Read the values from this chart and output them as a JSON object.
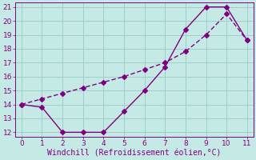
{
  "xlabel": "Windchill (Refroidissement éolien,°C)",
  "line1_x": [
    0,
    1,
    2,
    3,
    4,
    5,
    6,
    7,
    8,
    9,
    10,
    11
  ],
  "line1_y": [
    14,
    13.8,
    12,
    12,
    12,
    13.5,
    15,
    16.7,
    19.4,
    21,
    21,
    18.6
  ],
  "line2_x": [
    0,
    1,
    2,
    3,
    4,
    5,
    6,
    7,
    8,
    9,
    10,
    11
  ],
  "line2_y": [
    14,
    14.4,
    14.8,
    15.2,
    15.6,
    16.0,
    16.5,
    17.0,
    17.8,
    19.0,
    20.5,
    18.6
  ],
  "color": "#800080",
  "bg_color": "#c5eae6",
  "grid_color": "#9ecfcb",
  "xlim_min": -0.3,
  "xlim_max": 11.3,
  "ylim_min": 11.7,
  "ylim_max": 21.3,
  "xticks": [
    0,
    1,
    2,
    3,
    4,
    5,
    6,
    7,
    8,
    9,
    10,
    11
  ],
  "yticks": [
    12,
    13,
    14,
    15,
    16,
    17,
    18,
    19,
    20,
    21
  ],
  "marker": "D",
  "markersize": 3,
  "linewidth": 1.0,
  "xlabel_fontsize": 7,
  "tick_fontsize": 6.5
}
